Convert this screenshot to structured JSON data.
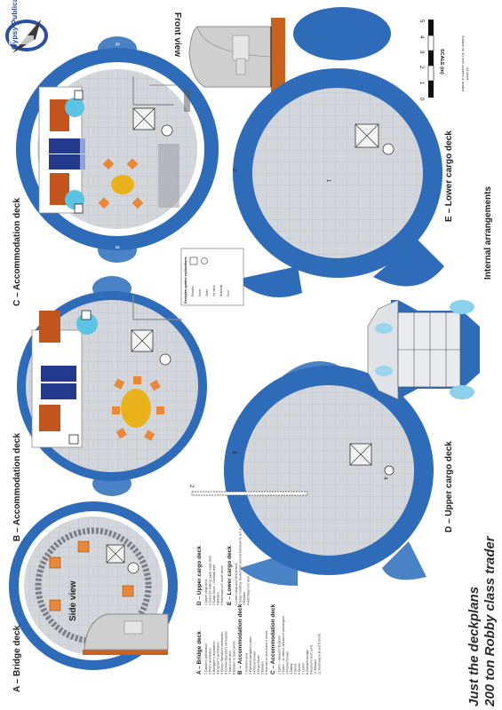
{
  "publisher": {
    "brand": "Gypsy Publications"
  },
  "title": {
    "line1": "Just the deckplans",
    "line2": "200 ton Robby class trader"
  },
  "views": {
    "front": "Front view",
    "side": "Side view",
    "internal": "Internal arrangements"
  },
  "decks": {
    "a": "A – Bridge deck",
    "b": "B – Accommodation deck",
    "c": "C – Accommodation deck",
    "d": "D – Upper cargo deck",
    "e": "E – Lower cargo deck"
  },
  "scale": {
    "label": "SCALE (m)",
    "ticks": [
      "0",
      "1",
      "2",
      "3",
      "4",
      "5"
    ],
    "note1": "Suitable for 3/4 inch counters or smaller",
    "note2": "A1 sheet"
  },
  "markers": {
    "one": "1",
    "two": "2",
    "three": "3",
    "four": "4",
    "eight": "8"
  },
  "key": {
    "a_heading": "A – Bridge deck",
    "a_items": [
      "1  Captain's workstation",
      "2  Pilot's workstation",
      "3  Navigator's workstation",
      "4  Engineer's workstation",
      "5  Sensor Operator's workstation",
      "6  Comms Operator's workstation",
      "7  Hatch to B deck",
      "8  Elevator to lower decks"
    ],
    "b_heading": "B – Accommodation deck",
    "b_items": [
      "1  Common area",
      "2  Pilot and Navigator's cabin",
      "3  Fresher/shower",
      "4  Ship's locker",
      "5  Elevator",
      "6  Hatches to both A and C decks"
    ],
    "c_heading": "C – Accommodation deck",
    "c_items": [
      "1  Cabin – Steward / Engineer",
      "2  Cabin – 2x cabins, privates or passengers",
      "3  Fresher/shower",
      "4  Galley",
      "5  Stores",
      "6  Stores",
      "7  Locker",
      "8  Stairwell storage",
      "9  Access to both ports",
      "10 Elevator",
      "11 Hatchway to B and D decks"
    ],
    "d_heading": "D – Upper cargo deck",
    "d_items": [
      "1  Upper cargo deck",
      "2  Crane for loading upper cargo deck",
      "3  Cargo doors – Gantball style",
      "4  Elevator",
      "5  Hatchway to C and E decks"
    ],
    "e_heading": "E – Lower cargo deck",
    "e_items": [
      "1  Lower cargo and vehicle deck",
      "2  Cargo handling, stowed and secured fold down to act as loading ramp",
      "3  Elevator",
      "4  Hatchway to D deck"
    ]
  },
  "symbols_key": {
    "heading": "Deckplan symbol explanations",
    "items": [
      "Elevator",
      "Hatch",
      "Stairs",
      "Iris valve",
      "Bulkhead",
      "Door"
    ]
  },
  "colors": {
    "hull_blue": "#2e6bb8",
    "wing_blue": "#4a82c6",
    "floor_grey": "#d3d6da",
    "grid_line": "#b4b8be",
    "seat_orange": "#e8893a",
    "cabin_rust": "#c2541e",
    "table_yellow": "#e9b21b",
    "bunk_navy": "#233a8c",
    "fresher_cyan": "#5bc3e3"
  }
}
